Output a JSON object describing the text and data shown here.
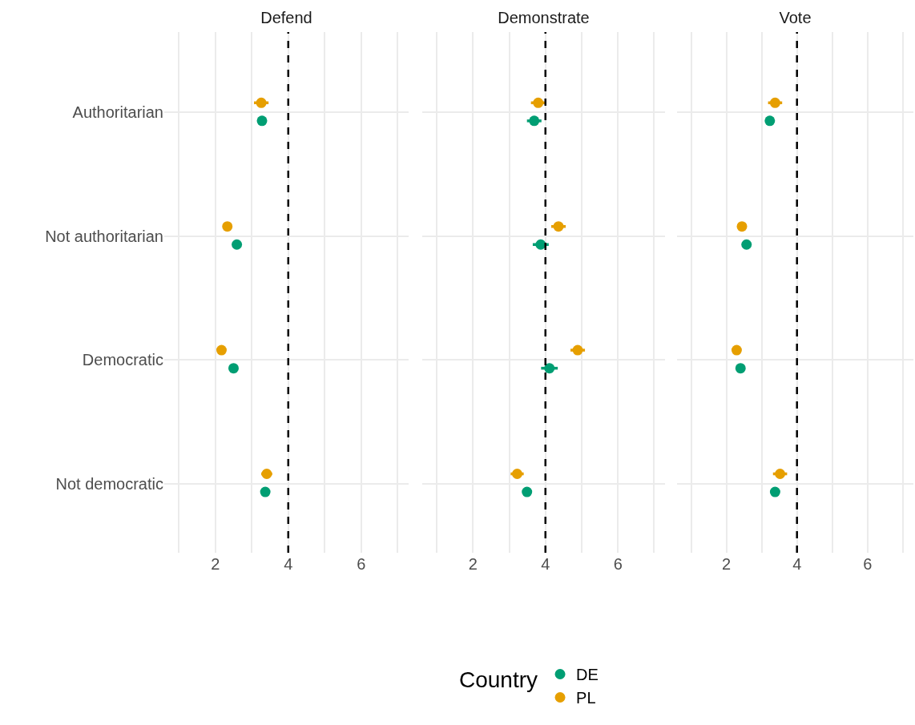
{
  "chart_data": [
    {
      "type": "scatter",
      "title": "Defend",
      "categories": [
        "Authoritarian",
        "Not authoritarian",
        "Democratic",
        "Not democratic"
      ],
      "orientation": "horizontal",
      "marker": "circle",
      "grid": true,
      "xlim": [
        0.6,
        7.3
      ],
      "xticks": [
        {
          "value": 1,
          "label": null
        },
        2,
        {
          "value": 3,
          "label": null
        },
        4,
        {
          "value": 5,
          "label": null
        },
        6,
        {
          "value": 7,
          "label": null
        }
      ],
      "ref_lines": [
        {
          "axis": "x",
          "value": 4,
          "color": "#000000",
          "line_style": "dashed"
        }
      ],
      "series": [
        {
          "color": "#009e73",
          "values": [
            3.28,
            2.59,
            2.5,
            3.37
          ],
          "errors": [
            null,
            null,
            null,
            null
          ]
        },
        {
          "color": "#e69f00",
          "values": [
            3.26,
            2.33,
            2.17,
            3.41
          ],
          "errors": [
            0.2,
            null,
            null,
            0.15
          ]
        }
      ]
    },
    {
      "type": "scatter",
      "title": "Demonstrate",
      "categories": [
        null,
        null,
        null,
        null
      ],
      "orientation": "horizontal",
      "marker": "circle",
      "grid": true,
      "tick_labels": "x",
      "xlim": [
        0.6,
        7.3
      ],
      "xticks": [
        {
          "value": 1,
          "label": null
        },
        2,
        {
          "value": 3,
          "label": null
        },
        4,
        {
          "value": 5,
          "label": null
        },
        6,
        {
          "value": 7,
          "label": null
        }
      ],
      "ref_lines": [
        {
          "axis": "x",
          "value": 4,
          "color": "#000000",
          "line_style": "dashed"
        }
      ],
      "series": [
        {
          "color": "#009e73",
          "values": [
            3.69,
            3.87,
            4.11,
            3.49
          ],
          "errors": [
            0.2,
            0.22,
            0.23,
            null
          ]
        },
        {
          "color": "#e69f00",
          "values": [
            3.8,
            4.36,
            4.89,
            3.22
          ],
          "errors": [
            0.2,
            0.2,
            0.2,
            0.18
          ]
        }
      ]
    },
    {
      "type": "scatter",
      "title": "Vote",
      "categories": [
        null,
        null,
        null,
        null
      ],
      "orientation": "horizontal",
      "marker": "circle",
      "grid": true,
      "tick_labels": "x",
      "legend": "bottom",
      "legend_title": "Country",
      "xlim": [
        0.6,
        7.3
      ],
      "xticks": [
        {
          "value": 1,
          "label": null
        },
        2,
        {
          "value": 3,
          "label": null
        },
        4,
        {
          "value": 5,
          "label": null
        },
        6,
        {
          "value": 7,
          "label": null
        }
      ],
      "ref_lines": [
        {
          "axis": "x",
          "value": 4,
          "color": "#000000",
          "line_style": "dashed"
        }
      ],
      "series": [
        {
          "name": "DE",
          "color": "#009e73",
          "values": [
            3.23,
            2.57,
            2.4,
            3.38
          ],
          "errors": [
            null,
            null,
            null,
            null
          ]
        },
        {
          "name": "PL",
          "color": "#e69f00",
          "values": [
            3.38,
            2.44,
            2.29,
            3.52
          ],
          "errors": [
            0.2,
            null,
            null,
            0.2
          ]
        }
      ]
    }
  ]
}
